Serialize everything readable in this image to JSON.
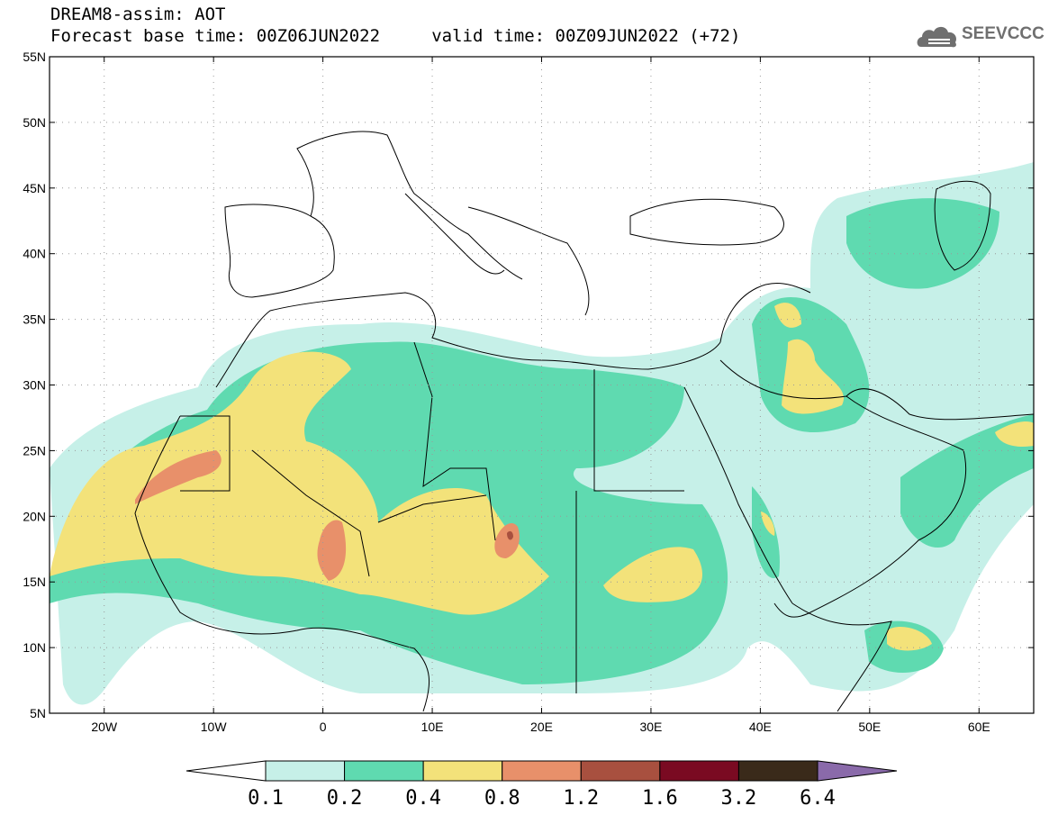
{
  "header": {
    "title_line1": "DREAM8-assim: AOT",
    "title_line2": "Forecast base time: 00Z06JUN2022     valid time: 00Z09JUN2022 (+72)",
    "logo_text": "SEEVCCC",
    "logo_icon": "cloud-icon"
  },
  "map": {
    "lon_range": [
      -25,
      65
    ],
    "lat_range": [
      5,
      55
    ],
    "lat_ticks": [
      "5N",
      "10N",
      "15N",
      "20N",
      "25N",
      "30N",
      "35N",
      "40N",
      "45N",
      "50N",
      "55N"
    ],
    "lon_ticks": [
      "20W",
      "10W",
      "0",
      "10E",
      "20E",
      "30E",
      "40E",
      "50E",
      "60E"
    ],
    "lat_tick_values": [
      5,
      10,
      15,
      20,
      25,
      30,
      35,
      40,
      45,
      50,
      55
    ],
    "lon_tick_values": [
      -20,
      -10,
      0,
      10,
      20,
      30,
      40,
      50,
      60
    ],
    "grid": "dotted"
  },
  "colorbar": {
    "levels": [
      "0.1",
      "0.2",
      "0.4",
      "0.8",
      "1.2",
      "1.6",
      "3.2",
      "6.4"
    ],
    "colors": [
      "#c6f0e8",
      "#5fdab0",
      "#f3e27a",
      "#e8906a",
      "#a8503f",
      "#7a0a22",
      "#3a2a1a"
    ],
    "under_color": "#ffffff",
    "over_color": "#8a6aaa"
  },
  "colors": {
    "c1": "#c6f0e8",
    "c2": "#5fdab0",
    "c3": "#f3e27a",
    "c4": "#e8906a",
    "c5": "#a8503f"
  }
}
